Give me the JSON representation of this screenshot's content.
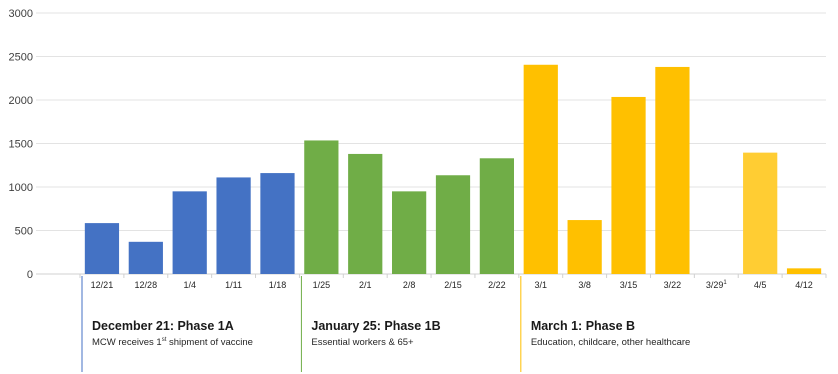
{
  "chart_data": {
    "type": "bar",
    "title": "",
    "xlabel": "",
    "ylabel": "",
    "ylim": [
      0,
      3000
    ],
    "yticks": [
      "0",
      "500",
      "1000",
      "1500",
      "2000",
      "2500",
      "3000"
    ],
    "grid": true,
    "categories": [
      "12/21",
      "12/28",
      "1/4",
      "1/11",
      "1/18",
      "1/25",
      "2/1",
      "2/8",
      "2/15",
      "2/22",
      "3/1",
      "3/8",
      "3/15",
      "3/22",
      "3/29",
      "4/5",
      "4/12"
    ],
    "category_superscripts": {
      "3/29": "1"
    },
    "values": [
      585,
      370,
      950,
      1110,
      1160,
      1535,
      1380,
      950,
      1135,
      1330,
      2405,
      620,
      2035,
      2380,
      0,
      1395,
      65
    ],
    "bar_colors": [
      "#4472c4",
      "#4472c4",
      "#4472c4",
      "#4472c4",
      "#4472c4",
      "#70ad47",
      "#70ad47",
      "#70ad47",
      "#70ad47",
      "#70ad47",
      "#ffc000",
      "#ffc000",
      "#ffc000",
      "#ffc000",
      "#ffc000",
      "#ffcd33",
      "#ffc000"
    ],
    "phases": [
      {
        "title": "December 21: Phase 1A",
        "subtitle_before": "MCW receives 1",
        "subtitle_sup": "st",
        "subtitle_after": " shipment of vaccine",
        "color": "#4472c4",
        "start_index": 0
      },
      {
        "title": "January 25: Phase 1B",
        "subtitle": "Essential workers & 65+",
        "color": "#70ad47",
        "start_index": 5
      },
      {
        "title": "March 1: Phase B",
        "subtitle": "Education, childcare, other healthcare",
        "color": "#ffc000",
        "start_index": 10
      }
    ]
  }
}
